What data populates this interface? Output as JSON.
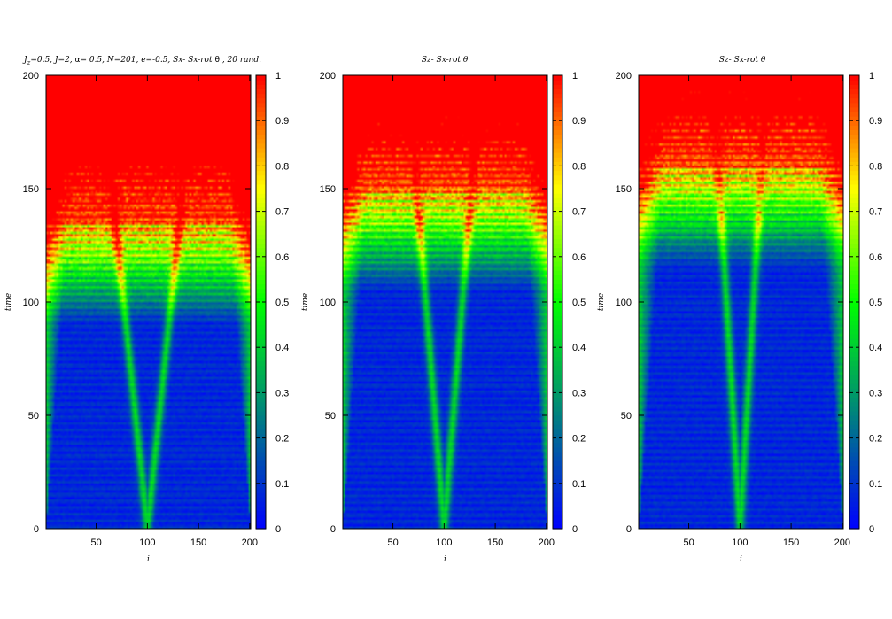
{
  "chart_data": [
    {
      "type": "heatmap",
      "title_html": "<tspan>J</tspan><tspan dy=\"3\" font-size=\"7\">z</tspan><tspan dy=\"-3\">=0.5,  J=2, </tspan><tspan font-style=\"normal\" font-family=\"DejaVu Sans\">α</tspan><tspan>= 0.5,   N=201,  e=-0.5, Sx- Sx-rot </tspan><tspan font-style=\"normal\" font-family=\"DejaVu Sans\">θ</tspan><tspan> , 20 rand.</tspan>",
      "xlabel": "i",
      "ylabel": "time",
      "xlim": [
        1,
        201
      ],
      "ylim": [
        0,
        200
      ],
      "xticks": [
        50,
        100,
        150,
        200
      ],
      "yticks": [
        0,
        50,
        100,
        150,
        200
      ],
      "colorbar": {
        "range": [
          0,
          1
        ],
        "ticks": [
          "0",
          "0.1",
          "0.2",
          "0.3",
          "0.4",
          "0.5",
          "0.6",
          "0.7",
          "0.8",
          "0.9",
          "1"
        ]
      },
      "colormap": [
        "#0000ff",
        "#008080",
        "#00ff00",
        "#ffff00",
        "#ff0000"
      ],
      "pattern": {
        "center_site": 100,
        "front_velocity": 0.55,
        "saturation_time": 135,
        "cone_width_at_top": 0.32,
        "secondary_center_offset": 25
      }
    },
    {
      "type": "heatmap",
      "title": "Sz- Sx-rot θ",
      "xlabel": "i",
      "ylabel": "time",
      "xlim": [
        1,
        201
      ],
      "ylim": [
        0,
        200
      ],
      "xticks": [
        50,
        100,
        150,
        200
      ],
      "yticks": [
        0,
        50,
        100,
        150,
        200
      ],
      "colorbar": {
        "range": [
          0,
          1
        ],
        "ticks": [
          "0",
          "0.1",
          "0.2",
          "0.3",
          "0.4",
          "0.5",
          "0.6",
          "0.7",
          "0.8",
          "0.9",
          "1"
        ]
      },
      "colormap": [
        "#0000ff",
        "#008080",
        "#00ff00",
        "#ffff00",
        "#ff0000"
      ],
      "pattern": {
        "center_site": 100,
        "front_velocity": 0.5,
        "saturation_time": 150,
        "cone_width_at_top": 0.27,
        "secondary_center_offset": 0
      }
    },
    {
      "type": "heatmap",
      "title": "Sz- Sx-rot θ",
      "xlabel": "i",
      "ylabel": "time",
      "xlim": [
        1,
        201
      ],
      "ylim": [
        0,
        200
      ],
      "xticks": [
        50,
        100,
        150,
        200
      ],
      "yticks": [
        0,
        50,
        100,
        150,
        200
      ],
      "colorbar": {
        "range": [
          0,
          1
        ],
        "ticks": [
          "0",
          "0.1",
          "0.2",
          "0.3",
          "0.4",
          "0.5",
          "0.6",
          "0.7",
          "0.8",
          "0.9",
          "1"
        ]
      },
      "colormap": [
        "#0000ff",
        "#008080",
        "#00ff00",
        "#ffff00",
        "#ff0000"
      ],
      "pattern": {
        "center_site": 100,
        "front_velocity": 0.4,
        "saturation_time": 160,
        "cone_width_at_top": 0.25,
        "secondary_center_offset": 0
      }
    }
  ]
}
